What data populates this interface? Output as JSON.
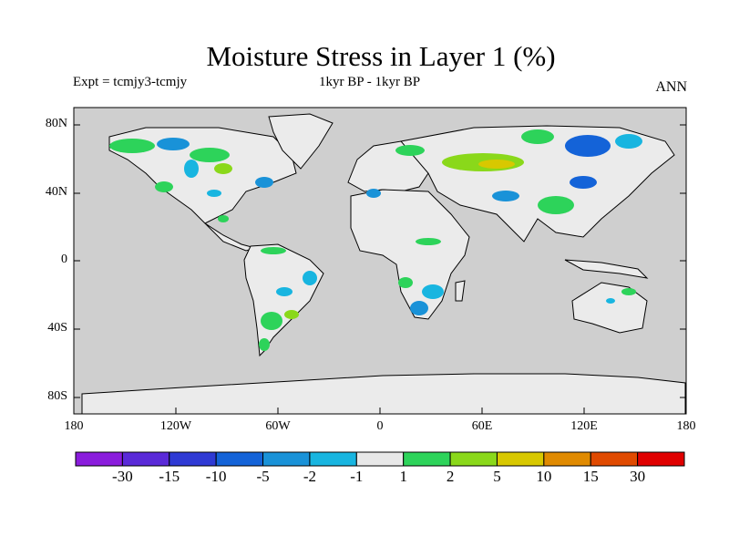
{
  "title": "Moisture Stress in Layer 1 (%)",
  "subtitle_left": "Expt = tcmjy3-tcmjy",
  "subtitle_center": "1kyr BP - 1kyr BP",
  "subtitle_right": "ANN",
  "y_ticks": [
    "80N",
    "40N",
    "0",
    "40S",
    "80S"
  ],
  "x_ticks": [
    "180",
    "120W",
    "60W",
    "0",
    "60E",
    "120E",
    "180"
  ],
  "colorbar": {
    "labels": [
      "-30",
      "-15",
      "-10",
      "-5",
      "-2",
      "-1",
      "1",
      "2",
      "5",
      "10",
      "15",
      "30"
    ],
    "colors": [
      "#8a1cdc",
      "#5a2ad8",
      "#2f3ad4",
      "#1463d8",
      "#1992d8",
      "#18b5e0",
      "#e8e8e8",
      "#2dd35a",
      "#8ad81a",
      "#d8c800",
      "#e08a00",
      "#e04a00",
      "#e00000"
    ]
  },
  "colors": {
    "ocean": "#cfcfcf",
    "land": "#ebebeb"
  }
}
